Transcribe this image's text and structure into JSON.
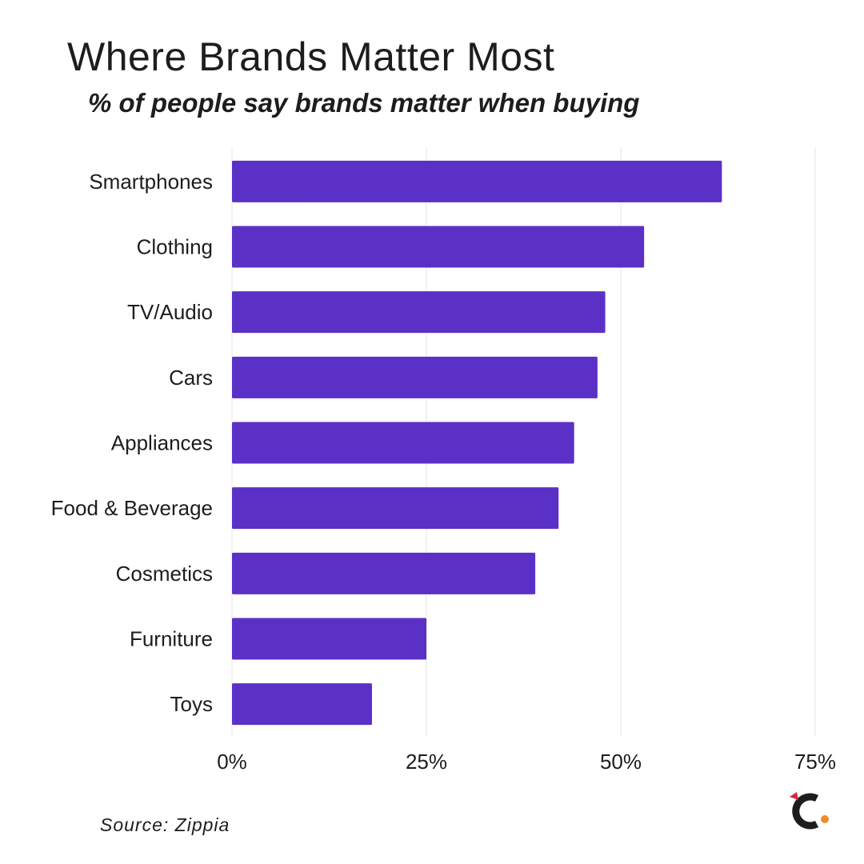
{
  "title": "Where Brands Matter Most",
  "subtitle": "% of people say brands matter when buying",
  "source": "Source: Zippia",
  "colors": {
    "bar": "#5b30c6",
    "grid": "#e6e6e6",
    "text": "#1d1d1f",
    "logo_dark": "#1d1d1f",
    "logo_accent_orange": "#f28c28",
    "logo_accent_red": "#d7263d"
  },
  "logo": {
    "icon": "zippia-logo-icon"
  },
  "chart_data": {
    "type": "bar",
    "orientation": "horizontal",
    "title": "Where Brands Matter Most",
    "subtitle": "% of people say brands matter when buying",
    "categories": [
      "Smartphones",
      "Clothing",
      "TV/Audio",
      "Cars",
      "Appliances",
      "Food & Beverage",
      "Cosmetics",
      "Furniture",
      "Toys"
    ],
    "values": [
      63,
      53,
      48,
      47,
      44,
      42,
      39,
      25,
      18
    ],
    "xlim": [
      0,
      75
    ],
    "ticks": [
      0,
      25,
      50,
      75
    ],
    "tick_labels": [
      "0%",
      "25%",
      "50%",
      "75%"
    ],
    "grid": "vertical",
    "legend": "none",
    "xlabel": "",
    "ylabel": ""
  }
}
